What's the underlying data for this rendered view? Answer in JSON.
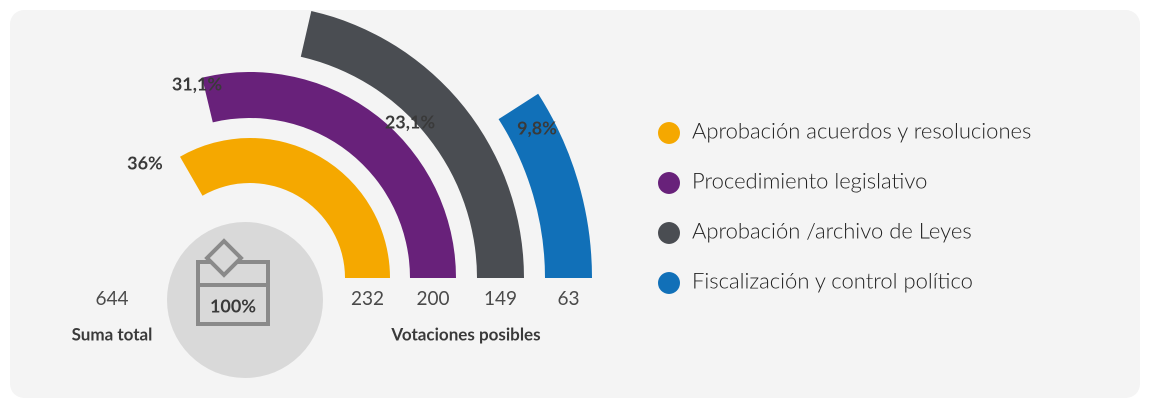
{
  "chart_data": {
    "type": "radial_bar",
    "categories": [
      "Aprobación acuerdos y resoluciones",
      "Procedimiento legislativo",
      "Aprobación /archivo de Leyes",
      "Fiscalización y control político"
    ],
    "series": [
      {
        "name": "Votaciones posibles",
        "values": [
          232,
          200,
          149,
          63
        ],
        "value_labels": [
          "36%",
          "31,1%",
          "23,1%",
          "9,8%"
        ]
      }
    ],
    "colors": [
      "#f5a800",
      "#68217a",
      "#4a4d52",
      "#1170b8"
    ],
    "total": {
      "value": 644,
      "name": "Suma total",
      "label": "100%"
    }
  }
}
